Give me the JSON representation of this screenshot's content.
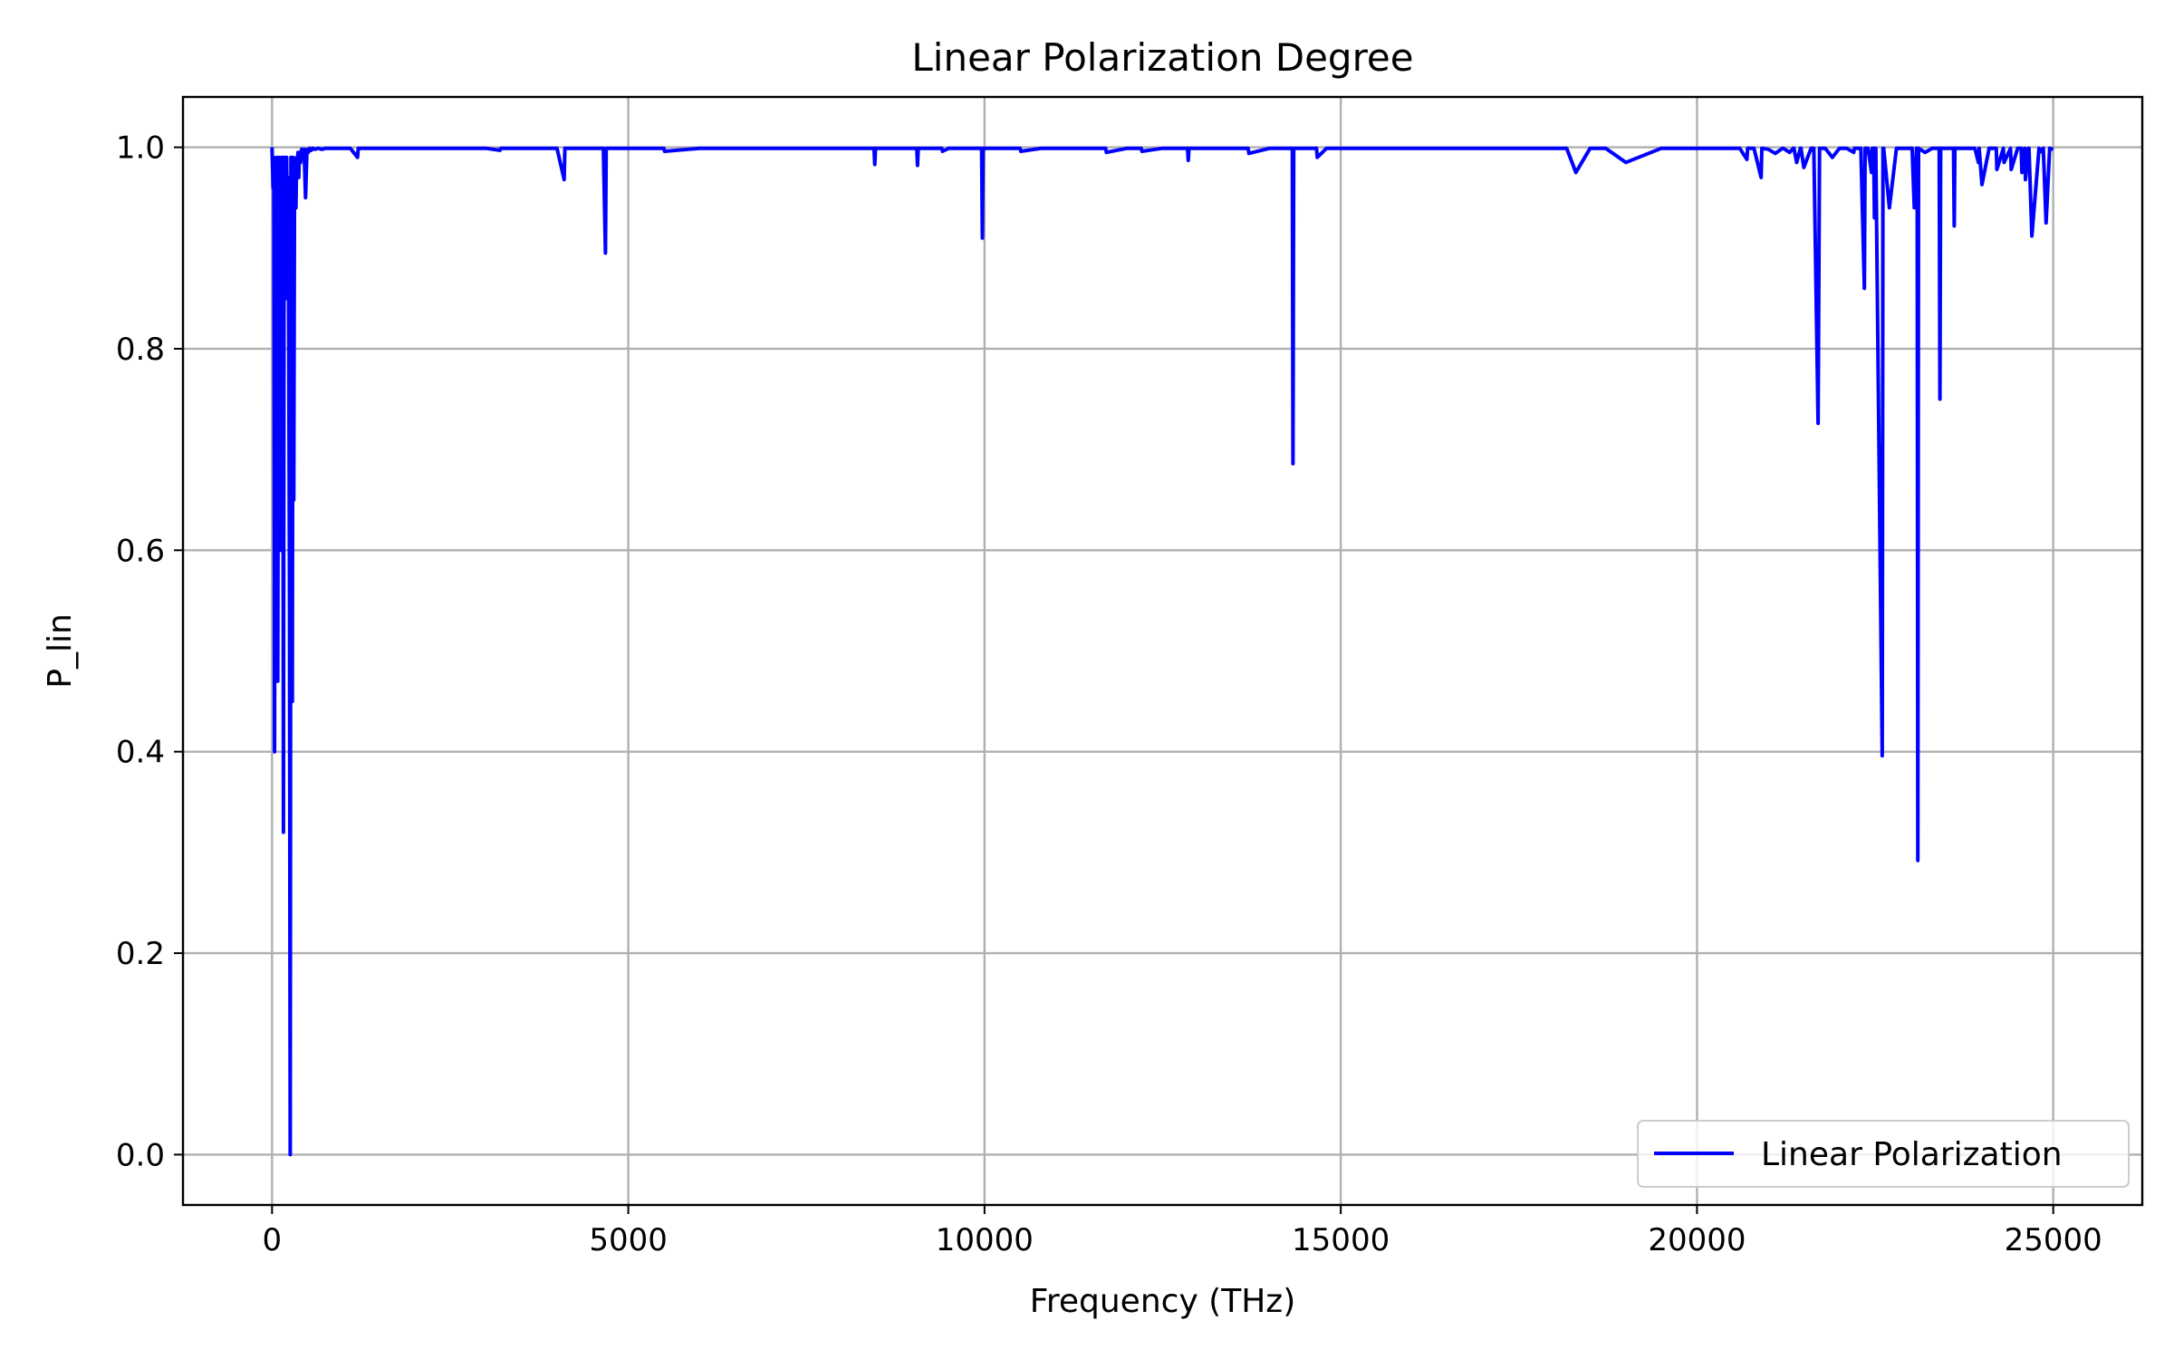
{
  "chart_data": {
    "type": "line",
    "title": "Linear Polarization Degree",
    "xlabel": "Frequency (THz)",
    "ylabel": "P_lin",
    "xlim": [
      -1250,
      26250
    ],
    "ylim": [
      -0.05,
      1.05
    ],
    "xticks": [
      0,
      5000,
      10000,
      15000,
      20000,
      25000
    ],
    "xtick_labels": [
      "0",
      "5000",
      "10000",
      "15000",
      "20000",
      "25000"
    ],
    "yticks": [
      0.0,
      0.2,
      0.4,
      0.6,
      0.8,
      1.0
    ],
    "ytick_labels": [
      "0.0",
      "0.2",
      "0.4",
      "0.6",
      "0.8",
      "1.0"
    ],
    "grid": true,
    "legend_position": "lower-right",
    "series": [
      {
        "name": "Linear Polarization",
        "color": "#0000ff",
        "x": [
          0,
          15,
          25,
          35,
          45,
          60,
          70,
          80,
          95,
          110,
          120,
          135,
          150,
          160,
          170,
          180,
          195,
          205,
          215,
          225,
          235,
          245,
          255,
          265,
          275,
          285,
          295,
          305,
          315,
          325,
          335,
          345,
          355,
          365,
          375,
          385,
          400,
          415,
          430,
          450,
          470,
          490,
          510,
          530,
          550,
          570,
          600,
          650,
          700,
          750,
          800,
          900,
          1000,
          1100,
          1200,
          1210,
          1300,
          1500,
          2000,
          2500,
          3000,
          3200,
          3210,
          3500,
          4000,
          4100,
          4110,
          4200,
          4650,
          4680,
          4690,
          4700,
          5000,
          5500,
          5510,
          6000,
          6500,
          7000,
          7500,
          8000,
          8450,
          8460,
          8470,
          8600,
          9000,
          9050,
          9060,
          9070,
          9200,
          9400,
          9410,
          9500,
          9950,
          9960,
          9970,
          9980,
          10000,
          10200,
          10500,
          10510,
          10800,
          11000,
          11500,
          11700,
          11710,
          12000,
          12200,
          12210,
          12500,
          12850,
          12860,
          12870,
          13000,
          13500,
          13700,
          13710,
          14000,
          14300,
          14320,
          14330,
          14340,
          14350,
          14400,
          14500,
          14650,
          14660,
          14670,
          14800,
          15000,
          15500,
          16000,
          16500,
          17000,
          17500,
          18000,
          18150,
          18160,
          18170,
          18300,
          18500,
          18700,
          18710,
          18720,
          19000,
          19500,
          20000,
          20400,
          20500,
          20510,
          20600,
          20700,
          20710,
          20720,
          20800,
          20900,
          20910,
          21000,
          21100,
          21200,
          21210,
          21300,
          21350,
          21360,
          21400,
          21450,
          21460,
          21500,
          21600,
          21610,
          21620,
          21630,
          21640,
          21700,
          21720,
          21800,
          21900,
          22000,
          22100,
          22200,
          22210,
          22220,
          22300,
          22350,
          22360,
          22400,
          22450,
          22460,
          22480,
          22490,
          22500,
          22510,
          22600,
          22610,
          22620,
          22700,
          22800,
          22900,
          23000,
          23010,
          23020,
          23050,
          23080,
          23090,
          23100,
          23110,
          23200,
          23300,
          23400,
          23410,
          23420,
          23500,
          23600,
          23610,
          23620,
          23700,
          23800,
          23900,
          23950,
          23960,
          24000,
          24100,
          24200,
          24210,
          24300,
          24310,
          24400,
          24410,
          24500,
          24550,
          24560,
          24600,
          24610,
          24650,
          24660,
          24700,
          24800,
          24850,
          24860,
          24900,
          24950,
          25000
        ],
        "y": [
          1.0,
          0.96,
          0.99,
          0.4,
          0.98,
          0.88,
          0.99,
          0.47,
          0.99,
          0.98,
          0.6,
          0.99,
          0.99,
          0.32,
          0.98,
          0.99,
          0.85,
          0.99,
          0.92,
          0.97,
          0.8,
          0.55,
          0.0,
          0.99,
          0.96,
          0.45,
          0.99,
          0.65,
          0.96,
          0.98,
          0.94,
          0.99,
          0.98,
          0.995,
          0.97,
          0.995,
          0.985,
          0.998,
          0.99,
          0.998,
          0.95,
          0.998,
          0.995,
          0.999,
          0.997,
          0.999,
          0.998,
          0.999,
          0.998,
          0.999,
          0.999,
          0.999,
          0.999,
          0.999,
          0.99,
          0.999,
          0.999,
          0.999,
          0.999,
          0.999,
          0.999,
          0.997,
          0.999,
          0.999,
          0.999,
          0.968,
          0.999,
          0.999,
          0.999,
          0.895,
          0.999,
          0.999,
          0.999,
          0.999,
          0.996,
          0.999,
          0.999,
          0.999,
          0.999,
          0.999,
          0.999,
          0.983,
          0.999,
          0.999,
          0.999,
          0.999,
          0.982,
          0.999,
          0.999,
          0.999,
          0.996,
          0.999,
          0.999,
          0.999,
          0.91,
          0.999,
          0.999,
          0.999,
          0.999,
          0.996,
          0.999,
          0.999,
          0.999,
          0.999,
          0.995,
          0.999,
          0.999,
          0.996,
          0.999,
          0.999,
          0.987,
          0.999,
          0.999,
          0.999,
          0.999,
          0.994,
          0.999,
          0.999,
          0.999,
          0.686,
          0.999,
          0.999,
          0.999,
          0.999,
          0.999,
          0.999,
          0.99,
          0.999,
          0.999,
          0.999,
          0.999,
          0.999,
          0.999,
          0.999,
          0.999,
          0.999,
          0.999,
          0.999,
          0.975,
          0.999,
          0.999,
          0.999,
          0.999,
          0.985,
          0.999,
          0.999,
          0.999,
          0.999,
          0.999,
          0.999,
          0.988,
          0.999,
          0.999,
          0.999,
          0.97,
          0.999,
          0.998,
          0.994,
          0.999,
          0.999,
          0.995,
          0.999,
          0.999,
          0.985,
          0.999,
          0.999,
          0.98,
          0.999,
          0.997,
          0.999,
          0.999,
          0.999,
          0.726,
          0.999,
          0.999,
          0.99,
          0.999,
          0.999,
          0.995,
          0.999,
          0.999,
          0.999,
          0.86,
          0.999,
          0.999,
          0.975,
          0.999,
          0.999,
          0.93,
          0.999,
          0.999,
          0.396,
          0.999,
          0.999,
          0.94,
          0.999,
          0.999,
          0.999,
          0.999,
          0.999,
          0.94,
          0.999,
          0.999,
          0.292,
          0.999,
          0.995,
          0.999,
          0.999,
          0.75,
          0.999,
          0.999,
          0.999,
          0.922,
          0.999,
          0.999,
          0.999,
          0.999,
          0.985,
          0.999,
          0.963,
          0.999,
          0.999,
          0.978,
          0.999,
          0.985,
          0.999,
          0.978,
          0.999,
          0.999,
          0.975,
          0.999,
          0.968,
          0.999,
          0.999,
          0.912,
          0.999,
          0.995,
          0.999,
          0.925,
          0.999,
          0.998
        ]
      }
    ]
  }
}
